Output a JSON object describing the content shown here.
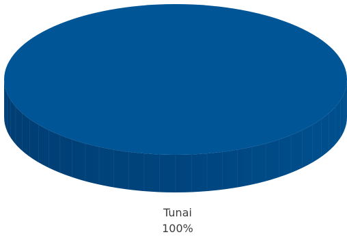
{
  "colors": {
    "top": "#005596",
    "side_light": "#00508E",
    "side_dark": "#003E73",
    "segment_line": "#2A6BA3"
  },
  "chart_data": {
    "type": "pie",
    "style": "3d",
    "slices": [
      {
        "label": "Tunai",
        "value": 100,
        "display": "100%"
      }
    ],
    "title": "",
    "legend": "none"
  }
}
